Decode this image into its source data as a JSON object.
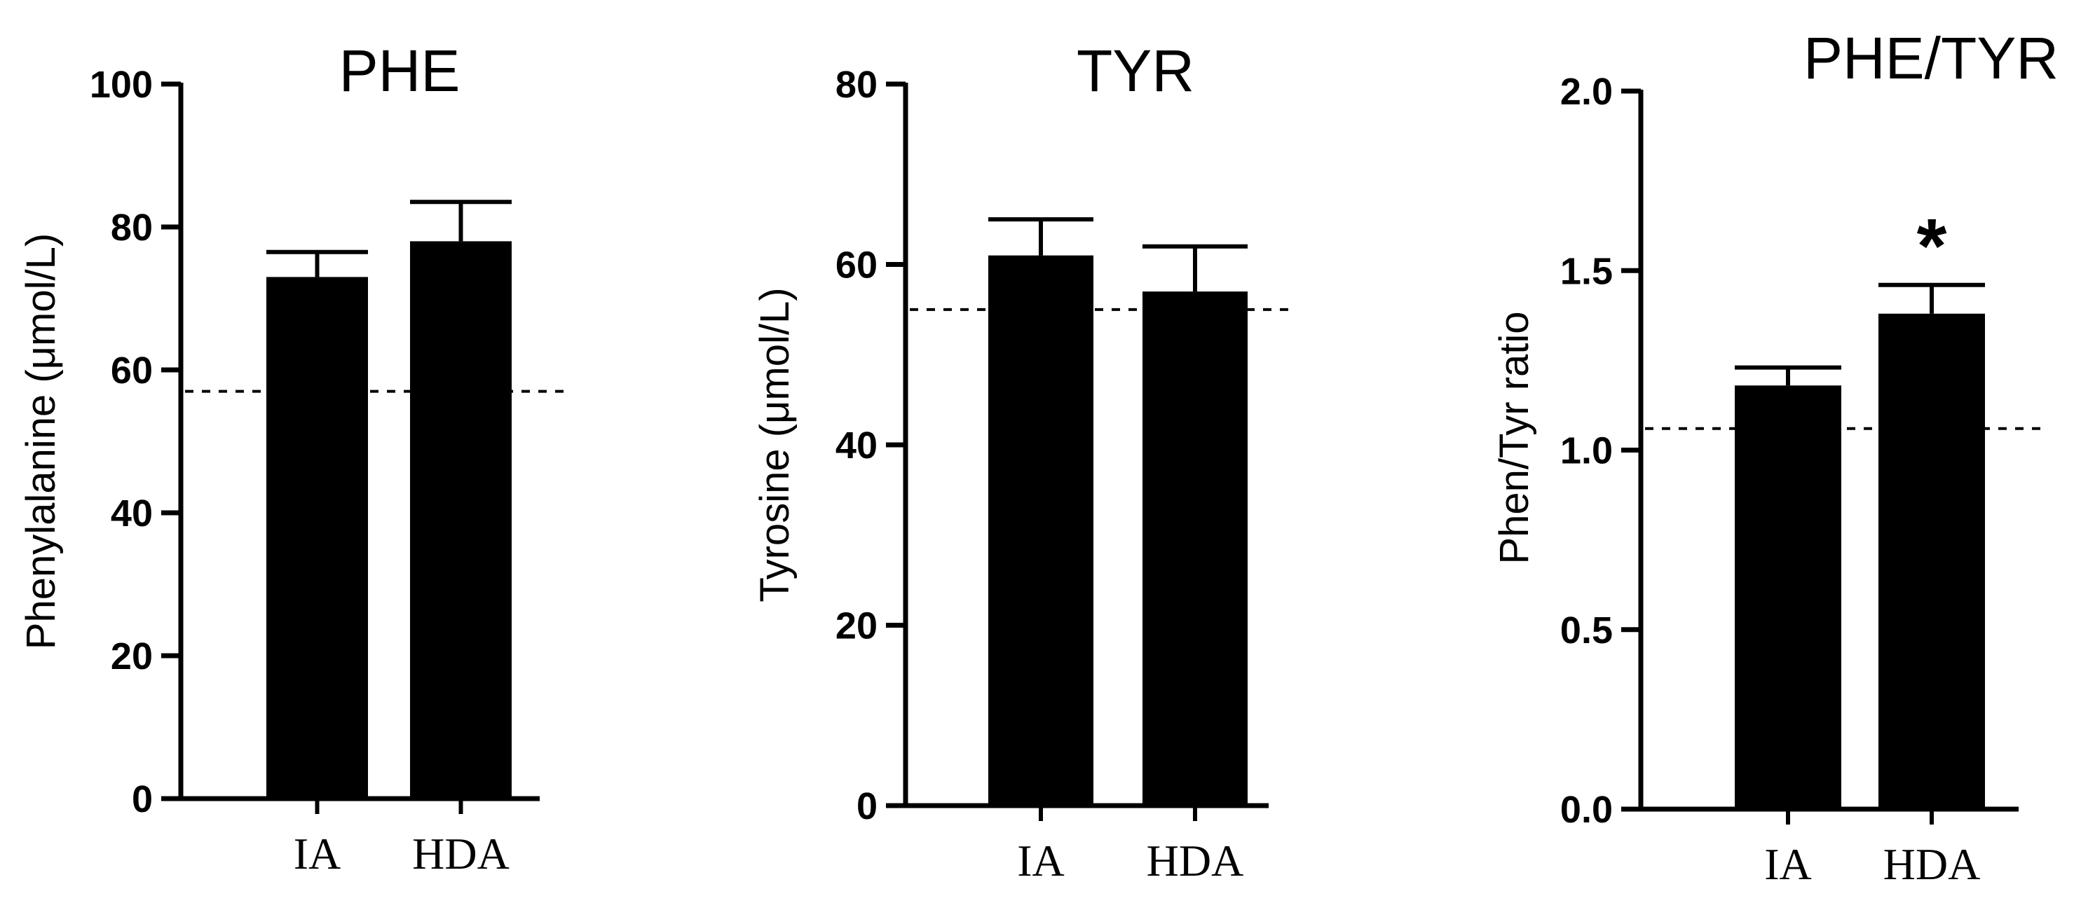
{
  "chart_data": [
    {
      "type": "bar",
      "title": "PHE",
      "ylabel": "Phenylalanine (μmol/L)",
      "categories": [
        "IA",
        "HDA"
      ],
      "values": [
        73,
        78
      ],
      "errors": [
        3.5,
        5.5
      ],
      "ylim": [
        0,
        100
      ],
      "yticks": [
        "0",
        "20",
        "40",
        "60",
        "80",
        "100"
      ],
      "reference_line": 57,
      "annotations": [
        "",
        ""
      ]
    },
    {
      "type": "bar",
      "title": "TYR",
      "ylabel": "Tyrosine (μmol/L)",
      "categories": [
        "IA",
        "HDA"
      ],
      "values": [
        61,
        57
      ],
      "errors": [
        4,
        5
      ],
      "ylim": [
        0,
        80
      ],
      "yticks": [
        "0",
        "20",
        "40",
        "60",
        "80"
      ],
      "reference_line": 55,
      "annotations": [
        "",
        ""
      ]
    },
    {
      "type": "bar",
      "title": "PHE/TYR",
      "ylabel": "Phen/Tyr ratio",
      "categories": [
        "IA",
        "HDA"
      ],
      "values": [
        1.18,
        1.38
      ],
      "errors": [
        0.05,
        0.08
      ],
      "ylim": [
        0,
        2.0
      ],
      "yticks": [
        "0.0",
        "0.5",
        "1.0",
        "1.5",
        "2.0"
      ],
      "reference_line": 1.06,
      "annotations": [
        "",
        "*"
      ]
    }
  ],
  "colors": {
    "bar": "#000000",
    "axis": "#000000",
    "reference_line": "#000000",
    "background": "#ffffff"
  }
}
